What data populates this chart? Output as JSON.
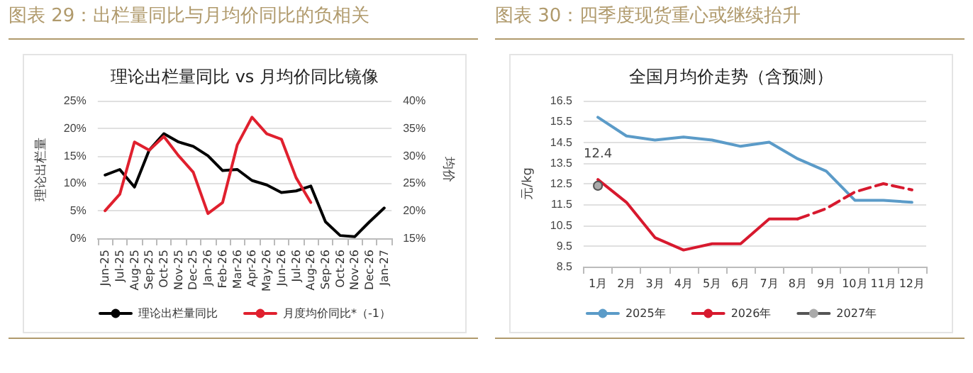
{
  "chart_data": [
    {
      "type": "line",
      "title": "图表 29：出栏量同比与月均价同比的负相关",
      "subtitle": "理论出栏量同比 vs 月均价同比镜像",
      "ylabel": "理论出栏量",
      "y2label": "均价",
      "categories": [
        "Jun-25",
        "Jul-25",
        "Aug-25",
        "Sep-25",
        "Oct-25",
        "Nov-25",
        "Dec-25",
        "Jan-26",
        "Feb-26",
        "Mar-26",
        "Apr-26",
        "May-26",
        "Jun-26",
        "Jul-26",
        "Aug-26",
        "Sep-26",
        "Oct-26",
        "Nov-26",
        "Dec-26",
        "Jan-27"
      ],
      "series": [
        {
          "name": "理论出栏量同比",
          "color": "#000000",
          "values": [
            11.5,
            12.5,
            9.3,
            16,
            19,
            17.5,
            16.7,
            15,
            12.3,
            12.5,
            10.5,
            9.7,
            8.3,
            8.6,
            9.5,
            3,
            0.5,
            0.3,
            3,
            5.5
          ]
        },
        {
          "name": "月度均价同比*（-1）",
          "color": "#e0202e",
          "axis": "y2",
          "values": [
            20,
            23,
            32.5,
            31,
            33.5,
            30,
            27,
            19.5,
            21.5,
            32,
            37,
            34,
            33,
            26,
            21.5,
            null,
            null,
            null,
            null,
            null
          ]
        }
      ],
      "ylim": [
        0,
        25
      ],
      "yticks": [
        {
          "value": 0,
          "label": "0%"
        },
        {
          "value": 5,
          "label": "5%"
        },
        {
          "value": 10,
          "label": "10%"
        },
        {
          "value": 15,
          "label": "15%"
        },
        {
          "value": 20,
          "label": "20%"
        },
        {
          "value": 25,
          "label": "25%"
        }
      ],
      "y2lim": [
        15,
        40
      ],
      "y2ticks": [
        {
          "value": 15,
          "label": "15%"
        },
        {
          "value": 20,
          "label": "20%"
        },
        {
          "value": 25,
          "label": "25%"
        },
        {
          "value": 30,
          "label": "30%"
        },
        {
          "value": 35,
          "label": "35%"
        },
        {
          "value": 40,
          "label": "40%"
        }
      ],
      "grid": "y",
      "legend": "bottom",
      "marker": "none",
      "line_style": "solid"
    },
    {
      "type": "line",
      "title": "图表 30：四季度现货重心或继续抬升",
      "subtitle": "全国月均价走势（含预测）",
      "ylabel": "元/kg",
      "categories": [
        "1月",
        "2月",
        "3月",
        "4月",
        "5月",
        "6月",
        "7月",
        "8月",
        "9月",
        "10月",
        "11月",
        "12月"
      ],
      "series": [
        {
          "name": "2025年",
          "color": "#5b9bc8",
          "values": [
            15.7,
            14.8,
            14.6,
            14.75,
            14.6,
            14.3,
            14.5,
            13.7,
            13.1,
            11.7,
            11.7,
            11.6
          ]
        },
        {
          "name": "2026年",
          "color": "#d7192e",
          "values": [
            12.7,
            11.6,
            9.9,
            9.3,
            9.6,
            9.6,
            10.8,
            10.8,
            null,
            null,
            null,
            null
          ]
        },
        {
          "color": "#d7192e",
          "line_style": "dashed",
          "values": [
            null,
            null,
            null,
            null,
            null,
            null,
            null,
            10.8,
            11.3,
            12.1,
            12.5,
            12.2
          ]
        },
        {
          "name": "2027年",
          "color": "#555555",
          "marker": "circle",
          "values": [
            12.4,
            null,
            null,
            null,
            null,
            null,
            null,
            null,
            null,
            null,
            null,
            null
          ],
          "value_labels": [
            "12.4",
            null,
            null,
            null,
            null,
            null,
            null,
            null,
            null,
            null,
            null,
            null
          ]
        }
      ],
      "ylim": [
        8.5,
        16.5
      ],
      "yticks": [
        8.5,
        9.5,
        10.5,
        11.5,
        12.5,
        13.5,
        14.5,
        15.5,
        16.5
      ],
      "grid": "y",
      "legend": "bottom",
      "marker": "none",
      "line_style": "solid"
    }
  ]
}
